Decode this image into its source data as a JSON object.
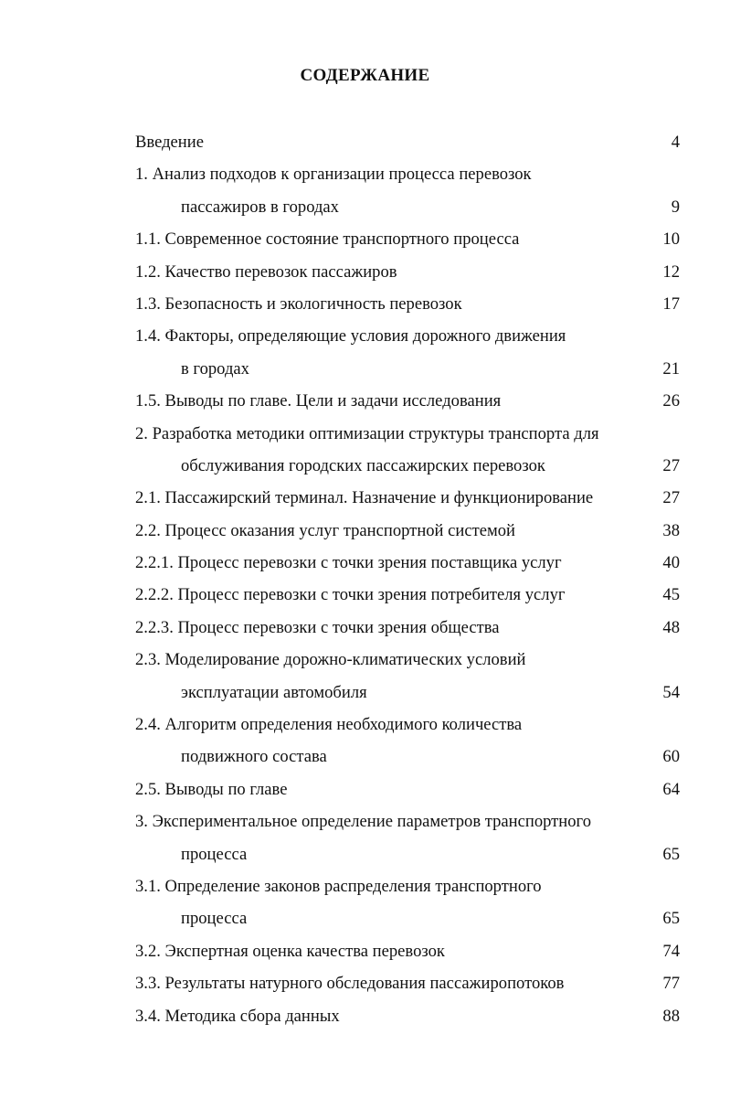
{
  "title": "СОДЕРЖАНИЕ",
  "entries": [
    {
      "lines": [
        "Введение"
      ],
      "page": "4"
    },
    {
      "lines": [
        "1. Анализ подходов к организации процесса перевозок",
        "пассажиров в городах"
      ],
      "page": "9"
    },
    {
      "lines": [
        "1.1. Современное состояние транспортного процесса"
      ],
      "page": "10"
    },
    {
      "lines": [
        "1.2. Качество перевозок пассажиров"
      ],
      "page": "12"
    },
    {
      "lines": [
        "1.3. Безопасность и экологичность перевозок"
      ],
      "page": "17"
    },
    {
      "lines": [
        "1.4. Факторы, определяющие условия дорожного движения",
        "в городах"
      ],
      "page": "21"
    },
    {
      "lines": [
        "1.5. Выводы по главе. Цели и задачи исследования"
      ],
      "page": "26"
    },
    {
      "lines": [
        "2. Разработка методики оптимизации структуры транспорта для",
        "обслуживания городских пассажирских перевозок"
      ],
      "page": "27"
    },
    {
      "lines": [
        "2.1. Пассажирский терминал. Назначение и функционирование"
      ],
      "page": "27"
    },
    {
      "lines": [
        "2.2. Процесс оказания услуг транспортной системой"
      ],
      "page": "38"
    },
    {
      "lines": [
        "2.2.1. Процесс перевозки с точки зрения поставщика услуг"
      ],
      "page": "40"
    },
    {
      "lines": [
        "2.2.2. Процесс перевозки с точки зрения потребителя услуг"
      ],
      "page": "45"
    },
    {
      "lines": [
        "2.2.3. Процесс перевозки с точки зрения общества"
      ],
      "page": "48"
    },
    {
      "lines": [
        "2.3. Моделирование дорожно-климатических условий",
        "эксплуатации автомобиля"
      ],
      "page": "54"
    },
    {
      "lines": [
        "2.4. Алгоритм определения необходимого количества",
        "подвижного состава"
      ],
      "page": "60"
    },
    {
      "lines": [
        "2.5. Выводы по главе"
      ],
      "page": "64"
    },
    {
      "lines": [
        "3. Экспериментальное определение параметров транспортного",
        "процесса"
      ],
      "page": "65"
    },
    {
      "lines": [
        "3.1. Определение законов распределения транспортного",
        "процесса"
      ],
      "page": "65"
    },
    {
      "lines": [
        "3.2. Экспертная оценка качества перевозок"
      ],
      "page": "74"
    },
    {
      "lines": [
        "3.3. Результаты натурного обследования пассажиропотоков"
      ],
      "page": "77"
    },
    {
      "lines": [
        "3.4. Методика сбора данных"
      ],
      "page": "88"
    }
  ]
}
